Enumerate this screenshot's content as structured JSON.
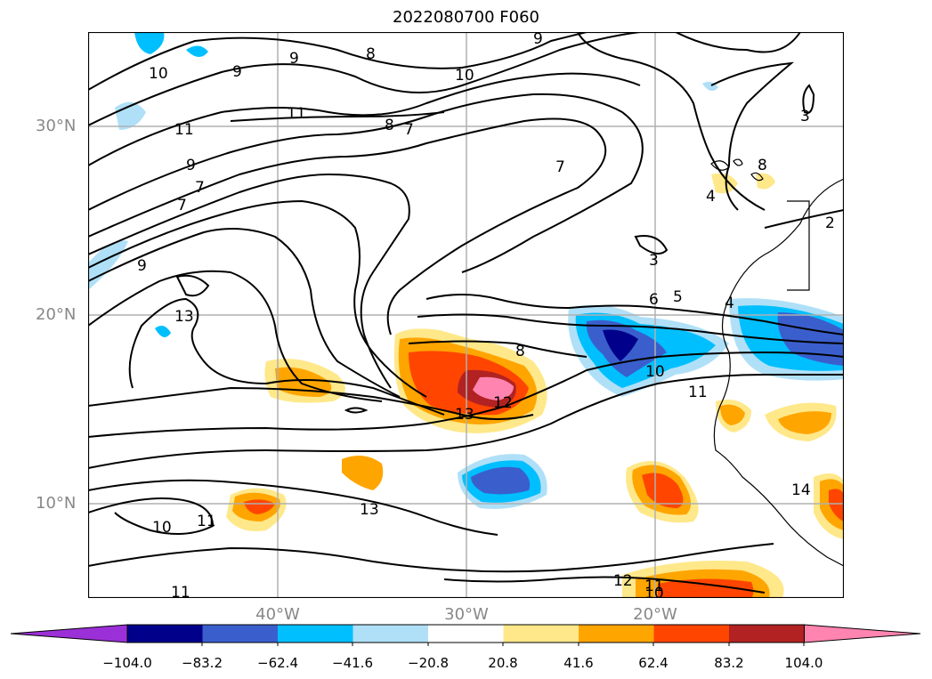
{
  "title": "2022080700 F060",
  "lat_labels": [
    "30°N",
    "20°N",
    "10°N"
  ],
  "lon_labels": [
    "40°W",
    "30°W",
    "20°W"
  ],
  "colorbar": {
    "ticks": [
      "−104.0",
      "−83.2",
      "−62.4",
      "−41.6",
      "−20.8",
      "20.8",
      "41.6",
      "62.4",
      "83.2",
      "104.0"
    ],
    "colors": [
      "#9b30d8",
      "#00008b",
      "#3a5fcd",
      "#00bfff",
      "#b0e0f8",
      "#ffffff",
      "#ffe88a",
      "#ffa500",
      "#ff4500",
      "#b22222",
      "#ff85b0"
    ]
  },
  "contour_labels": [
    "10",
    "9",
    "8",
    "9",
    "9",
    "10",
    "11",
    "11",
    "8",
    "7",
    "9",
    "7",
    "7",
    "7",
    "9",
    "13",
    "3",
    "4",
    "8",
    "2",
    "3",
    "6",
    "5",
    "4",
    "8",
    "10",
    "11",
    "12",
    "13",
    "13",
    "10",
    "11",
    "14",
    "12",
    "11",
    "10",
    "11"
  ],
  "map": {
    "land_outline_color": "#000000",
    "grid_color": "#b0b0b0",
    "contour_color": "#000000"
  }
}
